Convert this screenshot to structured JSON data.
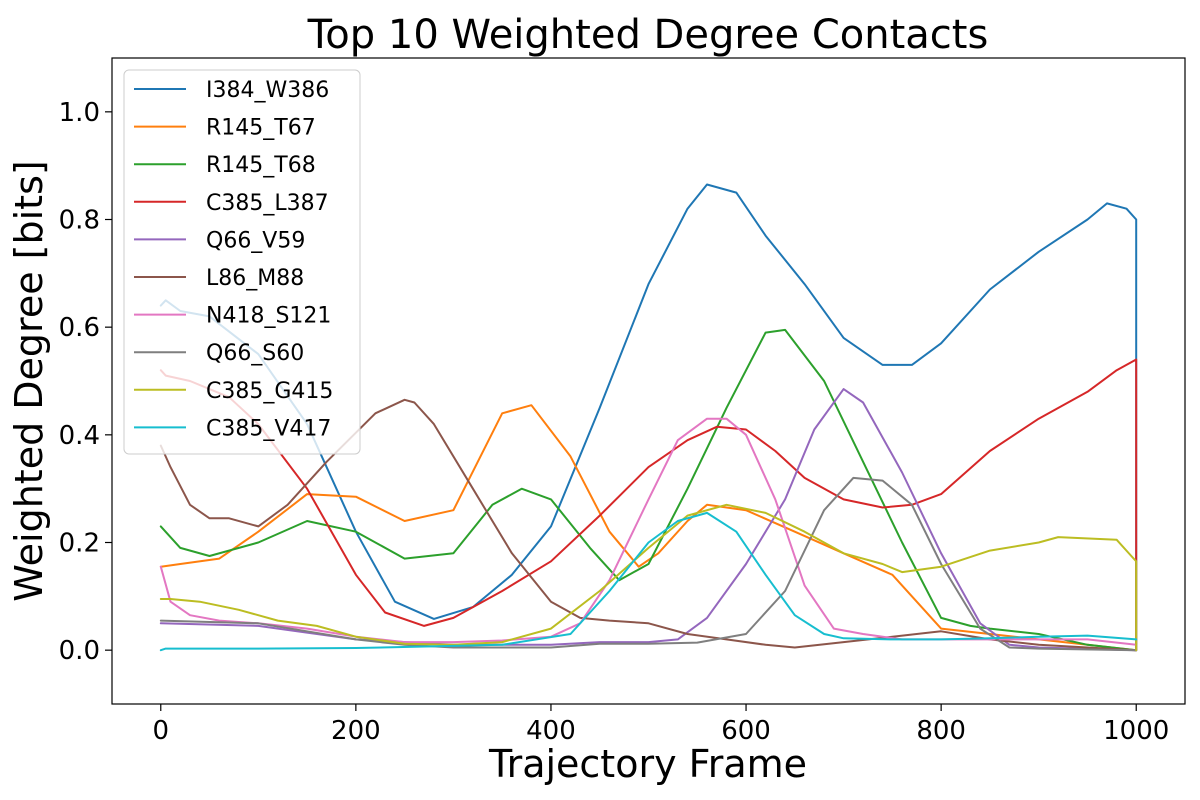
{
  "chart_data": {
    "type": "line",
    "title": "Top 10 Weighted Degree Contacts",
    "xlabel": "Trajectory Frame",
    "ylabel": "Weighted Degree [bits]",
    "xlim": [
      -50,
      1050
    ],
    "ylim": [
      -0.1,
      1.1
    ],
    "xticks": [
      0,
      200,
      400,
      600,
      800,
      1000
    ],
    "yticks": [
      0.0,
      0.2,
      0.4,
      0.6,
      0.8,
      1.0
    ],
    "xtick_labels": [
      "0",
      "200",
      "400",
      "600",
      "800",
      "1000"
    ],
    "ytick_labels": [
      "0.0",
      "0.2",
      "0.4",
      "0.6",
      "0.8",
      "1.0"
    ],
    "grid": false,
    "legend_position": "top-left",
    "series": [
      {
        "name": "I384_W386",
        "color": "#1f77b4",
        "x": [
          0,
          5,
          20,
          50,
          100,
          150,
          200,
          240,
          280,
          320,
          360,
          400,
          450,
          500,
          540,
          560,
          590,
          620,
          660,
          700,
          740,
          770,
          800,
          850,
          900,
          950,
          970,
          990,
          1000,
          1000
        ],
        "y": [
          0.64,
          0.65,
          0.63,
          0.62,
          0.55,
          0.42,
          0.22,
          0.09,
          0.058,
          0.08,
          0.14,
          0.23,
          0.45,
          0.68,
          0.82,
          0.865,
          0.85,
          0.77,
          0.68,
          0.58,
          0.53,
          0.53,
          0.57,
          0.67,
          0.74,
          0.8,
          0.83,
          0.82,
          0.8,
          0.0
        ]
      },
      {
        "name": "R145_T67",
        "color": "#ff7f0e",
        "x": [
          0,
          20,
          60,
          100,
          150,
          200,
          250,
          300,
          350,
          380,
          420,
          460,
          490,
          510,
          540,
          560,
          600,
          650,
          700,
          750,
          800,
          850,
          900,
          950,
          1000
        ],
        "y": [
          0.155,
          0.16,
          0.17,
          0.22,
          0.29,
          0.285,
          0.24,
          0.26,
          0.44,
          0.455,
          0.36,
          0.22,
          0.155,
          0.18,
          0.24,
          0.27,
          0.26,
          0.22,
          0.18,
          0.14,
          0.04,
          0.03,
          0.02,
          0.01,
          0.0
        ]
      },
      {
        "name": "R145_T68",
        "color": "#2ca02c",
        "x": [
          0,
          20,
          50,
          100,
          150,
          200,
          250,
          300,
          340,
          370,
          400,
          440,
          470,
          500,
          540,
          580,
          620,
          640,
          680,
          720,
          760,
          800,
          830,
          850,
          900,
          950,
          1000
        ],
        "y": [
          0.23,
          0.19,
          0.175,
          0.2,
          0.24,
          0.22,
          0.17,
          0.18,
          0.27,
          0.3,
          0.28,
          0.19,
          0.13,
          0.16,
          0.3,
          0.45,
          0.59,
          0.595,
          0.5,
          0.35,
          0.2,
          0.06,
          0.045,
          0.04,
          0.03,
          0.01,
          0.0
        ]
      },
      {
        "name": "C385_L387",
        "color": "#d62728",
        "x": [
          0,
          5,
          30,
          70,
          100,
          150,
          200,
          230,
          270,
          300,
          350,
          400,
          450,
          500,
          540,
          570,
          600,
          630,
          660,
          700,
          740,
          770,
          800,
          850,
          900,
          950,
          980,
          1000,
          1000
        ],
        "y": [
          0.52,
          0.51,
          0.5,
          0.47,
          0.42,
          0.3,
          0.14,
          0.07,
          0.045,
          0.06,
          0.11,
          0.165,
          0.25,
          0.34,
          0.39,
          0.415,
          0.41,
          0.37,
          0.32,
          0.28,
          0.265,
          0.27,
          0.29,
          0.37,
          0.43,
          0.48,
          0.52,
          0.54,
          0.0
        ]
      },
      {
        "name": "Q66_V59",
        "color": "#9467bd",
        "x": [
          0,
          100,
          200,
          300,
          400,
          450,
          500,
          530,
          560,
          600,
          640,
          670,
          700,
          720,
          760,
          800,
          840,
          870,
          900,
          1000
        ],
        "y": [
          0.05,
          0.045,
          0.02,
          0.01,
          0.01,
          0.015,
          0.015,
          0.02,
          0.06,
          0.16,
          0.28,
          0.41,
          0.485,
          0.46,
          0.33,
          0.18,
          0.05,
          0.01,
          0.005,
          0.0
        ]
      },
      {
        "name": "L86_M88",
        "color": "#8c564b",
        "x": [
          0,
          10,
          30,
          50,
          70,
          100,
          130,
          170,
          220,
          250,
          260,
          280,
          320,
          360,
          400,
          430,
          460,
          500,
          540,
          580,
          620,
          650,
          700,
          750,
          800,
          850,
          900,
          950,
          1000
        ],
        "y": [
          0.38,
          0.34,
          0.27,
          0.245,
          0.245,
          0.23,
          0.27,
          0.35,
          0.44,
          0.465,
          0.46,
          0.42,
          0.3,
          0.18,
          0.09,
          0.06,
          0.055,
          0.05,
          0.03,
          0.02,
          0.01,
          0.005,
          0.015,
          0.025,
          0.035,
          0.02,
          0.01,
          0.005,
          0.0
        ]
      },
      {
        "name": "N418_S121",
        "color": "#e377c2",
        "x": [
          0,
          10,
          30,
          60,
          100,
          150,
          200,
          250,
          300,
          350,
          400,
          430,
          460,
          500,
          530,
          560,
          580,
          600,
          630,
          660,
          690,
          720,
          760,
          800,
          850,
          900,
          950,
          1000
        ],
        "y": [
          0.155,
          0.09,
          0.065,
          0.055,
          0.05,
          0.04,
          0.025,
          0.015,
          0.015,
          0.018,
          0.025,
          0.05,
          0.13,
          0.28,
          0.39,
          0.43,
          0.43,
          0.4,
          0.28,
          0.12,
          0.04,
          0.03,
          0.02,
          0.02,
          0.02,
          0.02,
          0.02,
          0.01
        ]
      },
      {
        "name": "Q66_S60",
        "color": "#7f7f7f",
        "x": [
          0,
          100,
          200,
          250,
          300,
          400,
          450,
          500,
          550,
          600,
          640,
          680,
          710,
          740,
          770,
          800,
          840,
          870,
          900,
          1000
        ],
        "y": [
          0.055,
          0.05,
          0.02,
          0.01,
          0.005,
          0.005,
          0.012,
          0.012,
          0.014,
          0.03,
          0.11,
          0.26,
          0.32,
          0.315,
          0.27,
          0.16,
          0.04,
          0.005,
          0.003,
          0.0
        ]
      },
      {
        "name": "C385_G415",
        "color": "#bcbd22",
        "x": [
          0,
          10,
          40,
          80,
          120,
          160,
          200,
          250,
          300,
          350,
          400,
          450,
          500,
          540,
          580,
          620,
          660,
          700,
          740,
          760,
          800,
          850,
          900,
          920,
          980,
          995,
          1000,
          1000
        ],
        "y": [
          0.095,
          0.095,
          0.09,
          0.075,
          0.055,
          0.045,
          0.025,
          0.012,
          0.01,
          0.015,
          0.04,
          0.11,
          0.19,
          0.25,
          0.27,
          0.255,
          0.22,
          0.18,
          0.16,
          0.145,
          0.155,
          0.185,
          0.2,
          0.21,
          0.205,
          0.175,
          0.165,
          0.0
        ]
      },
      {
        "name": "C385_V417",
        "color": "#17becf",
        "x": [
          0,
          5,
          50,
          100,
          200,
          300,
          350,
          420,
          460,
          500,
          530,
          560,
          590,
          620,
          650,
          680,
          700,
          750,
          800,
          850,
          900,
          950,
          1000
        ],
        "y": [
          0.0,
          0.003,
          0.003,
          0.003,
          0.004,
          0.008,
          0.01,
          0.03,
          0.11,
          0.2,
          0.24,
          0.255,
          0.22,
          0.14,
          0.065,
          0.03,
          0.022,
          0.02,
          0.02,
          0.022,
          0.025,
          0.027,
          0.02
        ]
      }
    ]
  }
}
